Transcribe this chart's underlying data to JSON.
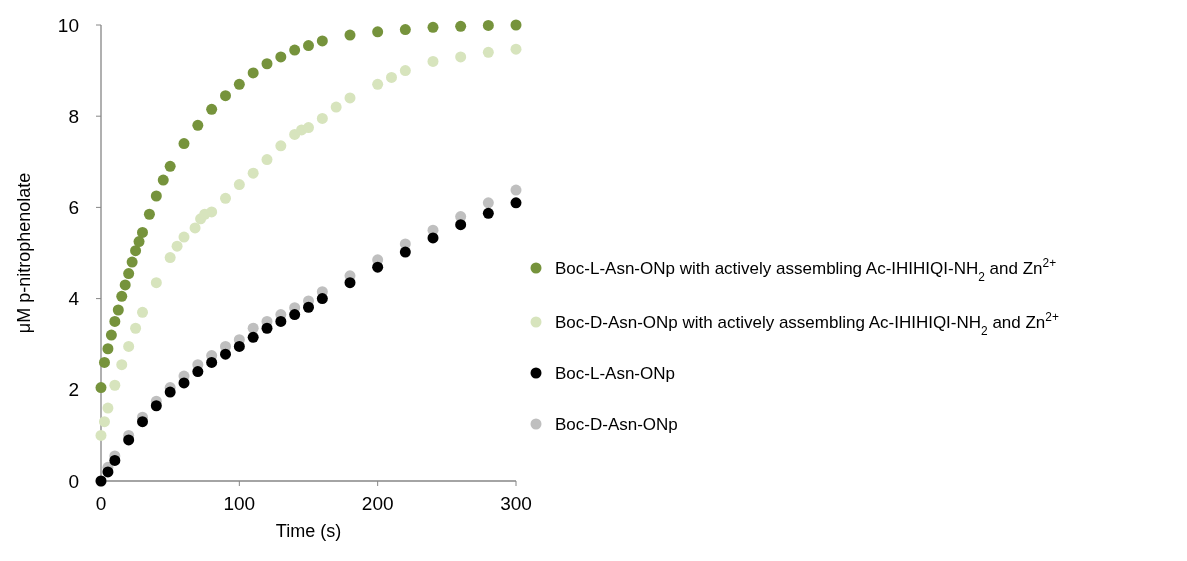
{
  "chart_data": {
    "type": "scatter",
    "xlabel": "Time (s)",
    "ylabel": "μM p-nitrophenolate",
    "xlim": [
      0,
      300
    ],
    "xticks": [
      0,
      100,
      200,
      300
    ],
    "ylim": [
      0,
      10
    ],
    "yticks": [
      0,
      2,
      4,
      6,
      8,
      10
    ],
    "grid": false,
    "legend": "right",
    "marker": "circle",
    "series": [
      {
        "name": "Boc-L-Asn-ONp with actively assembling Ac-IHIHIQI-NH$_{2}$ and Zn$^{2+}$",
        "color": "#76933c",
        "x": [
          0,
          2.5,
          5,
          7.5,
          10,
          12.5,
          15,
          17.5,
          20,
          22.5,
          25,
          27.5,
          30,
          35,
          40,
          45,
          50,
          60,
          70,
          80,
          90,
          100,
          110,
          120,
          130,
          140,
          150,
          160,
          180,
          200,
          220,
          240,
          260,
          280,
          300
        ],
        "values": [
          2.05,
          2.6,
          2.9,
          3.2,
          3.5,
          3.75,
          4.05,
          4.3,
          4.55,
          4.8,
          5.05,
          5.25,
          5.45,
          5.85,
          6.25,
          6.6,
          6.9,
          7.4,
          7.8,
          8.15,
          8.45,
          8.7,
          8.95,
          9.15,
          9.3,
          9.45,
          9.55,
          9.65,
          9.78,
          9.85,
          9.9,
          9.95,
          9.97,
          9.99,
          10.0
        ]
      },
      {
        "name": "Boc-D-Asn-ONp with actively assembling Ac-IHIHIQI-NH$_{2}$ and Zn$^{2+}$",
        "color": "#d7e4bd",
        "x": [
          0,
          2.5,
          5,
          10,
          15,
          20,
          25,
          30,
          40,
          50,
          55,
          60,
          68,
          72,
          75,
          80,
          90,
          100,
          110,
          120,
          130,
          140,
          145,
          150,
          160,
          170,
          180,
          200,
          210,
          220,
          240,
          260,
          280,
          300
        ],
        "values": [
          1.0,
          1.3,
          1.6,
          2.1,
          2.55,
          2.95,
          3.35,
          3.7,
          4.35,
          4.9,
          5.15,
          5.35,
          5.55,
          5.75,
          5.85,
          5.9,
          6.2,
          6.5,
          6.75,
          7.05,
          7.35,
          7.6,
          7.7,
          7.75,
          7.95,
          8.2,
          8.4,
          8.7,
          8.85,
          9.0,
          9.2,
          9.3,
          9.4,
          9.47
        ]
      },
      {
        "name": "Boc-L-Asn-ONp",
        "color": "#000000",
        "x": [
          0,
          5,
          10,
          20,
          30,
          40,
          50,
          60,
          70,
          80,
          90,
          100,
          110,
          120,
          130,
          140,
          150,
          160,
          180,
          200,
          220,
          240,
          260,
          280,
          300
        ],
        "values": [
          0,
          0.2,
          0.45,
          0.9,
          1.3,
          1.65,
          1.95,
          2.15,
          2.4,
          2.6,
          2.78,
          2.95,
          3.15,
          3.35,
          3.5,
          3.65,
          3.81,
          4.0,
          4.35,
          4.69,
          5.02,
          5.33,
          5.62,
          5.87,
          6.1
        ]
      },
      {
        "name": "Boc-D-Asn-ONp",
        "color": "#bfbfbf",
        "x": [
          0,
          5,
          10,
          20,
          30,
          40,
          50,
          60,
          70,
          80,
          90,
          100,
          110,
          120,
          130,
          140,
          150,
          160,
          180,
          200,
          220,
          240,
          260,
          280,
          300
        ],
        "values": [
          0,
          0.3,
          0.55,
          1.0,
          1.4,
          1.75,
          2.05,
          2.3,
          2.55,
          2.75,
          2.95,
          3.1,
          3.35,
          3.5,
          3.65,
          3.8,
          3.95,
          4.15,
          4.5,
          4.85,
          5.2,
          5.5,
          5.8,
          6.1,
          6.38
        ]
      }
    ]
  }
}
